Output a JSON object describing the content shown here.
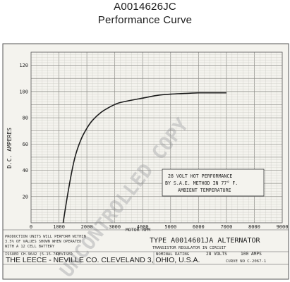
{
  "header": {
    "part_number": "A0014626JC",
    "subtitle": "Performance Curve"
  },
  "chart_data": {
    "type": "line",
    "title": "TYPE A0014601JA ALTERNATOR",
    "xlabel": "MOTOR RPM",
    "ylabel": "D.C. AMPERES",
    "xlim": [
      0,
      9000
    ],
    "ylim": [
      0,
      130
    ],
    "x_ticks": [
      0,
      1000,
      2000,
      3000,
      4000,
      5000,
      6000,
      7000,
      8000,
      9000
    ],
    "y_ticks": [
      20,
      40,
      60,
      80,
      100,
      120
    ],
    "x_tick_labels": [
      "0",
      "1000",
      "2000",
      "3000",
      "4000",
      "5000",
      "6000",
      "7000",
      "8000",
      "9000"
    ],
    "y_tick_labels": [
      "20",
      "40",
      "60",
      "80",
      "100",
      "120"
    ],
    "grid": true,
    "series": [
      {
        "x": [
          1150,
          1300,
          1450,
          1600,
          1800,
          2000,
          2200,
          2500,
          2800,
          3100,
          3500,
          4000,
          4500,
          5000,
          5500,
          6000,
          6500,
          7000
        ],
        "y": [
          0,
          20,
          38,
          52,
          64,
          72,
          78,
          84,
          88,
          91,
          93,
          95,
          97,
          98,
          98.5,
          99,
          99,
          99
        ]
      }
    ],
    "annotations": {
      "hot_performance": [
        "28 VOLT HOT PERFORMANCE",
        "BY S.A.E. METHOD IN 77° F.",
        "AMBIENT TEMPERATURE"
      ],
      "production_note": [
        "PRODUCTION UNITS WILL PERFORM WITHIN",
        "3.5% OF VALUES SHOWN WHEN OPERATED",
        "WITH A 12 CELL BATTERY"
      ],
      "issued": "ISSUED CH.9642 (5-15-78)",
      "revised": "REVISED",
      "subtitle_circuit": "TRANSISTOR REGULATOR IN CIRCUIT",
      "nominal_rating_label": "NOMINAL RATING",
      "rating_volts": "28 VOLTS",
      "rating_amps": "100 AMPS",
      "company": "THE LEECE - NEVILLE CO. CLEVELAND 3, OHIO, U.S.A.",
      "curve_no": "CURVE NO C-2067-1"
    },
    "watermark": "UNCONTROLLED COPY"
  },
  "colors": {
    "paper": "#f4f3ee",
    "grid_minor": "#c8c8c2",
    "grid_major": "#8d8d88",
    "curve": "#1c1c1c",
    "watermark": "#c9c9c9"
  }
}
